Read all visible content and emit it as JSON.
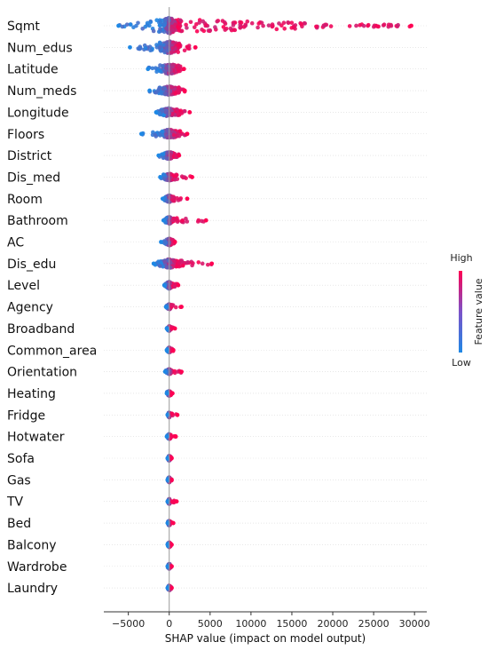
{
  "chart_data": {
    "type": "scatter",
    "subtype": "shap-beeswarm",
    "title": "",
    "xlabel": "SHAP value (impact on model output)",
    "ylabel": "",
    "xlim": [
      -8000,
      31500
    ],
    "x_ticks": [
      -5000,
      0,
      5000,
      10000,
      15000,
      20000,
      25000,
      30000
    ],
    "x_tick_labels": [
      "−5000",
      "0",
      "5000",
      "10000",
      "15000",
      "20000",
      "25000",
      "30000"
    ],
    "colorbar": {
      "label": "Feature value",
      "high": "High",
      "low": "Low",
      "low_color": "#1e88e5",
      "high_color": "#ff0052"
    },
    "grid": false,
    "legend": "right",
    "features": [
      {
        "name": "Sqmt",
        "min": -6200,
        "max": 29600,
        "spread": 9
      },
      {
        "name": "Num_edus",
        "min": -4800,
        "max": 3200,
        "spread": 7
      },
      {
        "name": "Latitude",
        "min": -2600,
        "max": 1800,
        "spread": 6
      },
      {
        "name": "Num_meds",
        "min": -2400,
        "max": 1900,
        "spread": 5
      },
      {
        "name": "Longitude",
        "min": -1600,
        "max": 2500,
        "spread": 5
      },
      {
        "name": "Floors",
        "min": -3400,
        "max": 2200,
        "spread": 5
      },
      {
        "name": "District",
        "min": -1300,
        "max": 1200,
        "spread": 4
      },
      {
        "name": "Dis_med",
        "min": -1100,
        "max": 2800,
        "spread": 4
      },
      {
        "name": "Room",
        "min": -800,
        "max": 2200,
        "spread": 4
      },
      {
        "name": "Bathroom",
        "min": -700,
        "max": 4500,
        "spread": 4
      },
      {
        "name": "AC",
        "min": -1000,
        "max": 700,
        "spread": 4
      },
      {
        "name": "Dis_edu",
        "min": -1900,
        "max": 5200,
        "spread": 5
      },
      {
        "name": "Level",
        "min": -600,
        "max": 1100,
        "spread": 4
      },
      {
        "name": "Agency",
        "min": -400,
        "max": 1500,
        "spread": 3
      },
      {
        "name": "Broadband",
        "min": -300,
        "max": 700,
        "spread": 3
      },
      {
        "name": "Common_area",
        "min": -300,
        "max": 500,
        "spread": 3
      },
      {
        "name": "Orientation",
        "min": -500,
        "max": 1500,
        "spread": 3
      },
      {
        "name": "Heating",
        "min": -300,
        "max": 400,
        "spread": 3
      },
      {
        "name": "Fridge",
        "min": -200,
        "max": 1000,
        "spread": 3
      },
      {
        "name": "Hotwater",
        "min": -300,
        "max": 800,
        "spread": 3
      },
      {
        "name": "Sofa",
        "min": -200,
        "max": 300,
        "spread": 3
      },
      {
        "name": "Gas",
        "min": -200,
        "max": 300,
        "spread": 3
      },
      {
        "name": "TV",
        "min": -200,
        "max": 900,
        "spread": 3
      },
      {
        "name": "Bed",
        "min": -200,
        "max": 500,
        "spread": 3
      },
      {
        "name": "Balcony",
        "min": -200,
        "max": 300,
        "spread": 3
      },
      {
        "name": "Wardrobe",
        "min": -200,
        "max": 300,
        "spread": 3
      },
      {
        "name": "Laundry",
        "min": -200,
        "max": 300,
        "spread": 3
      }
    ]
  }
}
